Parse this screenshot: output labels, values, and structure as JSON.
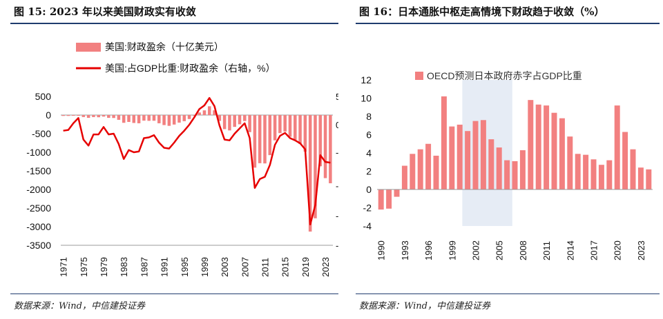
{
  "left": {
    "title": "图 15: 2023 年以来美国财政实有收敛",
    "source": "数据来源：Wind，中信建投证券",
    "chart_data": {
      "type": "bar+line",
      "legend": [
        "美国:财政盈余（十亿美元）",
        "美国:占GDP比重:财政盈余（右轴，%）"
      ],
      "colors": {
        "bar": "#f28080",
        "line": "#e60000"
      },
      "ylim": [
        -3500,
        500
      ],
      "yticks": [
        500,
        0,
        -500,
        -1000,
        -1500,
        -2000,
        -2500,
        -3000,
        -3500
      ],
      "xticks": [
        "1971",
        "1975",
        "1979",
        "1983",
        "1987",
        "1991",
        "1995",
        "1999",
        "2003",
        "2007",
        "2011",
        "2015",
        "2019",
        "2023"
      ],
      "years": [
        1971,
        1972,
        1973,
        1974,
        1975,
        1976,
        1977,
        1978,
        1979,
        1980,
        1981,
        1982,
        1983,
        1984,
        1985,
        1986,
        1987,
        1988,
        1989,
        1990,
        1991,
        1992,
        1993,
        1994,
        1995,
        1996,
        1997,
        1998,
        1999,
        2000,
        2001,
        2002,
        2003,
        2004,
        2005,
        2006,
        2007,
        2008,
        2009,
        2010,
        2011,
        2012,
        2013,
        2014,
        2015,
        2016,
        2017,
        2018,
        2019,
        2020,
        2021,
        2022,
        2023,
        2024
      ],
      "series": [
        {
          "name": "美国:财政盈余（十亿美元）",
          "axis": "left",
          "values": [
            -23,
            -23,
            -15,
            -6,
            -53,
            -74,
            -54,
            -59,
            -41,
            -74,
            -79,
            -128,
            -208,
            -185,
            -212,
            -221,
            -150,
            -155,
            -153,
            -221,
            -269,
            -290,
            -255,
            -203,
            -164,
            -107,
            -22,
            69,
            126,
            236,
            128,
            -158,
            -378,
            -413,
            -318,
            -248,
            -161,
            -459,
            -1413,
            -1294,
            -1300,
            -1077,
            -680,
            -485,
            -442,
            -585,
            -665,
            -779,
            -984,
            -3132,
            -2775,
            -1376,
            -1695,
            -1833
          ]
        },
        {
          "name": "美国:占GDP比重:财政盈余（右轴，%）",
          "axis": "right",
          "values": [
            -2.1,
            -2.0,
            -1.1,
            -0.4,
            -3.3,
            -4.1,
            -2.6,
            -2.6,
            -1.6,
            -2.6,
            -2.5,
            -3.9,
            -5.9,
            -4.7,
            -5.0,
            -4.9,
            -3.1,
            -3.0,
            -2.7,
            -3.7,
            -4.4,
            -4.5,
            -3.7,
            -2.8,
            -2.1,
            -1.3,
            -0.3,
            0.8,
            1.3,
            2.3,
            1.2,
            -1.4,
            -3.3,
            -3.4,
            -2.5,
            -1.8,
            -1.1,
            -3.1,
            -9.8,
            -8.6,
            -8.3,
            -6.7,
            -4.0,
            -2.8,
            -2.4,
            -3.1,
            -3.4,
            -3.8,
            -4.6,
            -14.7,
            -12.1,
            -5.4,
            -6.3,
            -6.4
          ]
        }
      ],
      "right_axis_visible": [
        "5",
        "0",
        "-",
        "-",
        "-",
        "-"
      ]
    }
  },
  "right": {
    "title": "图 16：日本通胀中枢走高情境下财政趋于收敛（%）",
    "source": "数据来源：Wind，中信建投证券",
    "chart_data": {
      "type": "bar",
      "legend": [
        "OECD预测日本政府赤字占GDP比重"
      ],
      "colors": {
        "bar": "#f28080",
        "highlight": "#e6ecf5"
      },
      "ylim": [
        -4,
        12
      ],
      "yticks": [
        12,
        10,
        8,
        6,
        4,
        2,
        0,
        -2,
        -4
      ],
      "xticks": [
        "1990",
        "1993",
        "1996",
        "1999",
        "2002",
        "2005",
        "2008",
        "2011",
        "2014",
        "2017",
        "2020",
        "2023"
      ],
      "highlight_range": [
        2001,
        2006
      ],
      "years": [
        1990,
        1991,
        1992,
        1993,
        1994,
        1995,
        1996,
        1997,
        1998,
        1999,
        2000,
        2001,
        2002,
        2003,
        2004,
        2005,
        2006,
        2007,
        2008,
        2009,
        2010,
        2011,
        2012,
        2013,
        2014,
        2015,
        2016,
        2017,
        2018,
        2019,
        2020,
        2021,
        2022,
        2023,
        2024
      ],
      "values": [
        -2.2,
        -2.1,
        -0.8,
        2.6,
        3.9,
        4.4,
        5.0,
        3.7,
        10.2,
        6.9,
        7.1,
        6.4,
        7.5,
        7.6,
        5.5,
        4.6,
        3.2,
        3.1,
        4.3,
        9.8,
        9.3,
        9.2,
        8.4,
        7.8,
        5.8,
        3.9,
        3.8,
        3.3,
        2.7,
        3.2,
        9.2,
        6.3,
        4.4,
        2.4,
        2.2
      ]
    }
  }
}
